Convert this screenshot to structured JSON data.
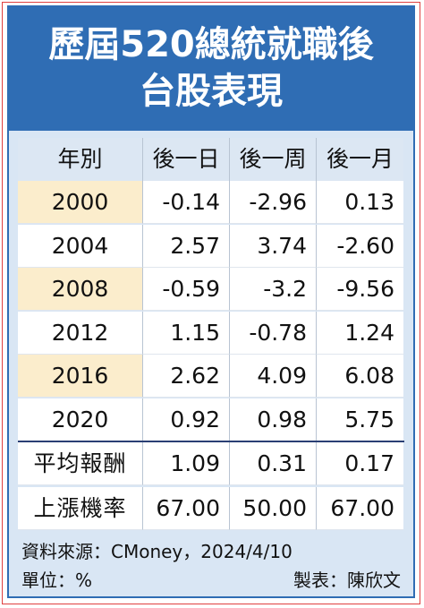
{
  "header": {
    "title_lines": [
      "歷屆520總統就職後",
      "台股表現"
    ]
  },
  "table": {
    "columns": [
      "年別",
      "後一日",
      "後一周",
      "後一月"
    ],
    "rows": [
      [
        "2000",
        "-0.14",
        "-2.96",
        "0.13"
      ],
      [
        "2004",
        "2.57",
        "3.74",
        "-2.60"
      ],
      [
        "2008",
        "-0.59",
        "-3.2",
        "-9.56"
      ],
      [
        "2012",
        "1.15",
        "-0.78",
        "1.24"
      ],
      [
        "2016",
        "2.62",
        "4.09",
        "6.08"
      ],
      [
        "2020",
        "0.92",
        "0.98",
        "5.75"
      ]
    ],
    "summary_rows": [
      [
        "平均報酬",
        "1.09",
        "0.31",
        "0.17"
      ],
      [
        "上漲機率",
        "67.00",
        "50.00",
        "67.00"
      ]
    ]
  },
  "footer": {
    "source": "資料來源：CMoney，2024/4/10",
    "unit": "單位：%",
    "author": "製表：陳欣文"
  }
}
